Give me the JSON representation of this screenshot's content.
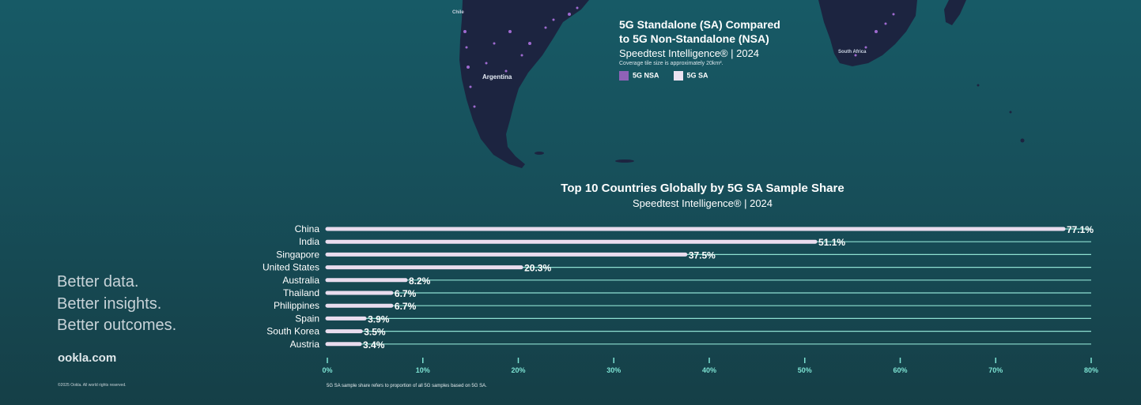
{
  "map": {
    "title": "5G Standalone (SA) Compared\nto 5G Non-Standalone (NSA)",
    "subtitle": "Speedtest Intelligence® | 2024",
    "note": "Coverage tile size is approximately 20km².",
    "legend": [
      {
        "label": "5G NSA",
        "color": "#8f62b8"
      },
      {
        "label": "5G SA",
        "color": "#ece3f2"
      }
    ],
    "labels": {
      "chile": "Chile",
      "argentina": "Argentina",
      "south_africa": "South Africa"
    }
  },
  "chart_data": {
    "type": "bar",
    "orientation": "horizontal",
    "title": "Top 10 Countries Globally by 5G SA Sample Share",
    "subtitle": "Speedtest Intelligence® | 2024",
    "categories": [
      "China",
      "India",
      "Singapore",
      "United States",
      "Australia",
      "Thailand",
      "Philippines",
      "Spain",
      "South Korea",
      "Austria"
    ],
    "values": [
      77.1,
      51.1,
      37.5,
      20.3,
      8.2,
      6.7,
      6.7,
      3.9,
      3.5,
      3.4
    ],
    "value_labels": [
      "77.1%",
      "51.1%",
      "37.5%",
      "20.3%",
      "8.2%",
      "6.7%",
      "6.7%",
      "3.9%",
      "3.5%",
      "3.4%"
    ],
    "xlim": [
      0,
      80
    ],
    "xticks": [
      0,
      10,
      20,
      30,
      40,
      50,
      60,
      70,
      80
    ],
    "xtick_labels": [
      "0%",
      "10%",
      "20%",
      "30%",
      "40%",
      "50%",
      "60%",
      "70%",
      "80%"
    ],
    "bar_color": "#e9dcee",
    "track_color": "#8fe0d2",
    "tick_color": "#7de3d3",
    "footnote": "5G SA sample share refers to proportion of all 5G samples based on 5G SA."
  },
  "branding": {
    "tagline": [
      "Better data.",
      "Better insights.",
      "Better outcomes."
    ],
    "site": "ookla.com",
    "copyright": "©2025 Ookla. All world rights reserved."
  }
}
